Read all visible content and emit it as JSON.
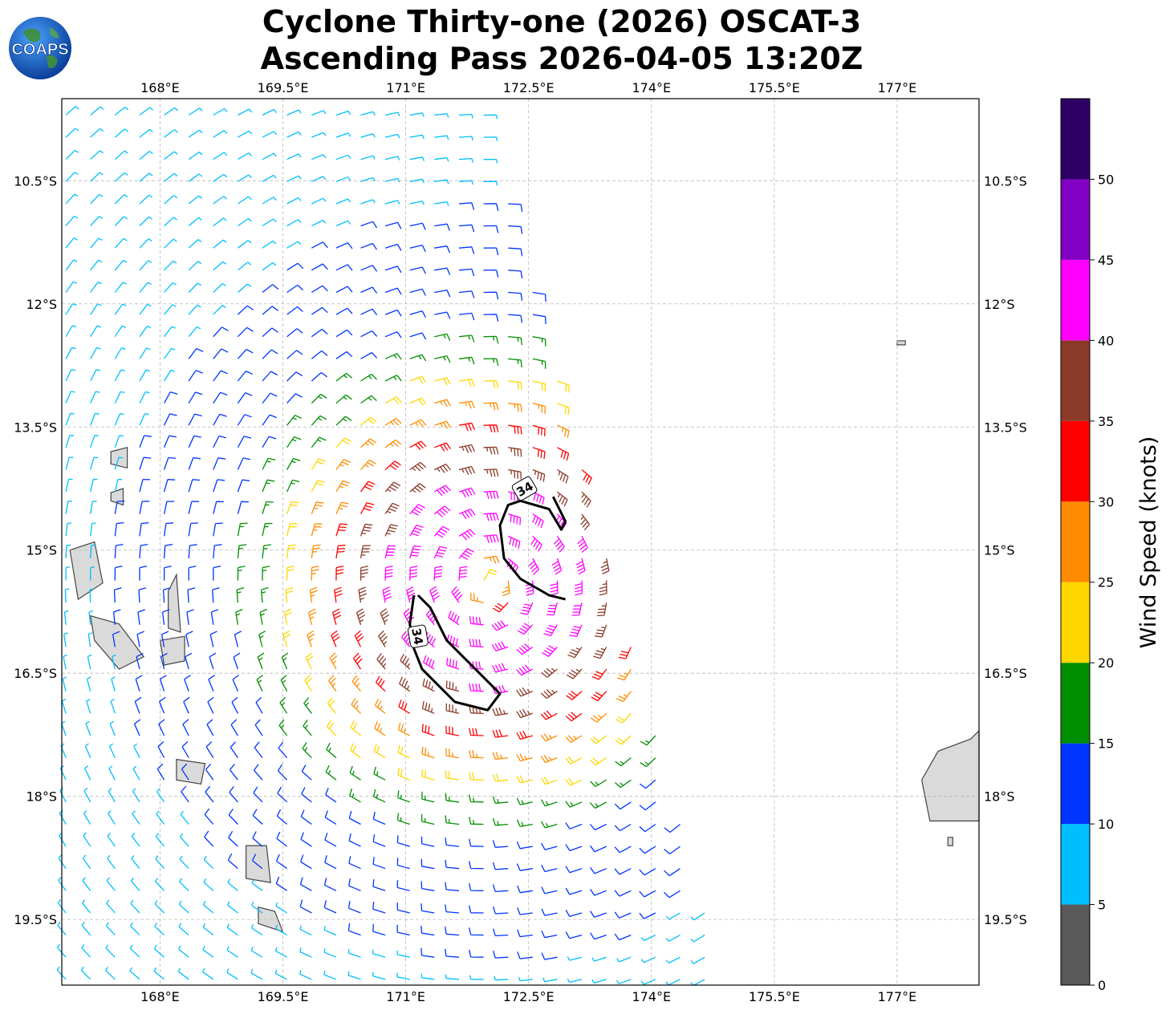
{
  "title": {
    "line1": "Cyclone Thirty-one (2026) OSCAT-3",
    "line2": "Ascending Pass 2026-04-05 13:20Z"
  },
  "logo": {
    "icon": "coaps-globe-logo",
    "text": "COAPS"
  },
  "map": {
    "lon_range": [
      166.8,
      178.0
    ],
    "lat_range": [
      -20.3,
      -9.5
    ],
    "lon_ticks": [
      "168°E",
      "169.5°E",
      "171°E",
      "172.5°E",
      "174°E",
      "175.5°E",
      "177°E"
    ],
    "lon_tick_values": [
      168,
      169.5,
      171,
      172.5,
      174,
      175.5,
      177
    ],
    "lat_ticks": [
      "10.5°S",
      "12°S",
      "13.5°S",
      "15°S",
      "16.5°S",
      "18°S",
      "19.5°S"
    ],
    "lat_tick_values": [
      -10.5,
      -12,
      -13.5,
      -15,
      -16.5,
      -18,
      -19.5
    ],
    "grid": true,
    "gridline_style": "dashed gray",
    "cyclone_center": {
      "lon": 172.0,
      "lat": -15.4
    },
    "contour_label": "34",
    "contour_color": "#000000"
  },
  "colorbar": {
    "title": "Wind Speed (knots)",
    "range": [
      0,
      55
    ],
    "labels": [
      "0",
      "5",
      "10",
      "15",
      "20",
      "25",
      "30",
      "35",
      "40",
      "45",
      "50"
    ],
    "label_values": [
      0,
      5,
      10,
      15,
      20,
      25,
      30,
      35,
      40,
      45,
      50
    ],
    "colors": [
      "#595959",
      "#00bfff",
      "#0034ff",
      "#008f00",
      "#ffd700",
      "#ff8c00",
      "#ff0000",
      "#8b3a28",
      "#ff00ff",
      "#8200c4",
      "#2e0066"
    ]
  }
}
